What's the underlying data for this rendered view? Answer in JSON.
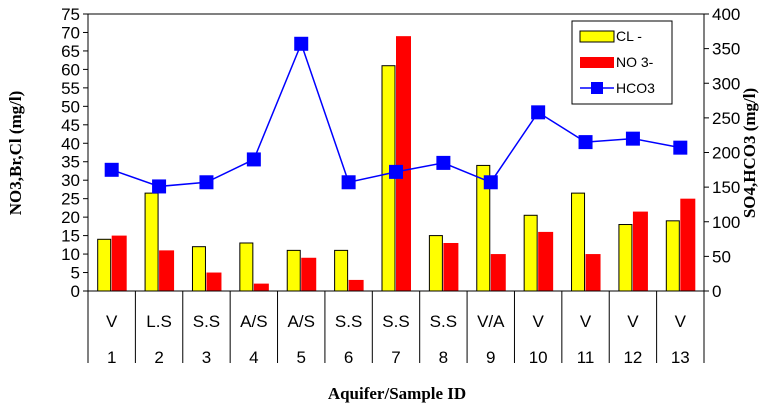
{
  "chart_data": {
    "type": "bar",
    "title": "",
    "xlabel": "Aquifer/Sample ID",
    "ylabel": "NO3,Br,Cl (mg/l)",
    "y2label": "SO4,HCO3 (mg/l)",
    "ylim": [
      0,
      75
    ],
    "y2lim": [
      0,
      400
    ],
    "y_ticks": [
      "0",
      "5",
      "10",
      "15",
      "20",
      "25",
      "30",
      "35",
      "40",
      "45",
      "50",
      "55",
      "60",
      "65",
      "70",
      "75"
    ],
    "y2_ticks": [
      "0",
      "50",
      "100",
      "150",
      "200",
      "250",
      "300",
      "350",
      "400"
    ],
    "categories": [
      "1",
      "2",
      "3",
      "4",
      "5",
      "6",
      "7",
      "8",
      "9",
      "10",
      "11",
      "12",
      "13"
    ],
    "aquifers": [
      "V",
      "L.S",
      "S.S",
      "A/S",
      "A/S",
      "S.S",
      "S.S",
      "S.S",
      "V/A",
      "V",
      "V",
      "V",
      "V"
    ],
    "legend_position": "top-right",
    "grid": false,
    "series": [
      {
        "name": "CL -",
        "type": "bar",
        "axis": "left",
        "color": "#ffff00",
        "values": [
          14,
          26.5,
          12,
          13,
          11,
          11,
          61,
          15,
          34,
          20.5,
          26.5,
          18,
          19
        ]
      },
      {
        "name": "NO 3-",
        "type": "bar",
        "axis": "left",
        "color": "#ff0000",
        "values": [
          15,
          11,
          5,
          2,
          9,
          3,
          69,
          13,
          10,
          16,
          10,
          21.5,
          25
        ]
      },
      {
        "name": "HCO3",
        "type": "line",
        "axis": "right",
        "color": "#0000ff",
        "values": [
          175,
          151,
          157,
          190,
          357,
          157,
          172,
          185,
          157,
          258,
          215,
          220,
          207
        ]
      }
    ]
  }
}
